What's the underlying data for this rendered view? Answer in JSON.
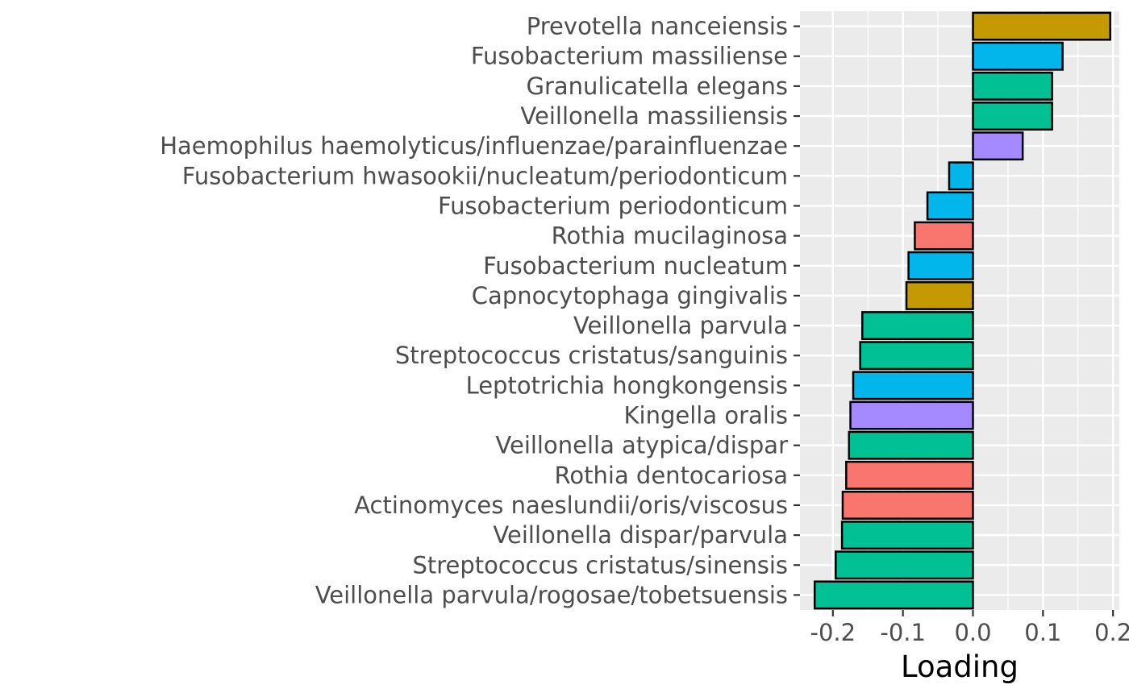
{
  "chart_data": {
    "type": "bar",
    "orientation": "horizontal",
    "title": "",
    "xlabel": "Loading",
    "ylabel": "",
    "xlim": [
      -0.247,
      0.209
    ],
    "x_ticks": [
      -0.2,
      -0.1,
      0.0,
      0.1,
      0.2
    ],
    "x_tick_labels": [
      "-0.2",
      "-0.1",
      "0.0",
      "0.1",
      "0.2"
    ],
    "grid": true,
    "legend": "none",
    "categories": [
      "Prevotella nanceiensis",
      "Fusobacterium massiliense",
      "Granulicatella elegans",
      "Veillonella massiliensis",
      "Haemophilus haemolyticus/influenzae/parainfluenzae",
      "Fusobacterium hwasookii/nucleatum/periodonticum",
      "Fusobacterium periodonticum",
      "Rothia mucilaginosa",
      "Fusobacterium nucleatum",
      "Capnocytophaga gingivalis",
      "Veillonella parvula",
      "Streptococcus cristatus/sanguinis",
      "Leptotrichia hongkongensis",
      "Kingella oralis",
      "Veillonella atypica/dispar",
      "Rothia dentocariosa",
      "Actinomyces naeslundii/oris/viscosus",
      "Veillonella dispar/parvula",
      "Streptococcus cristatus/sinensis",
      "Veillonella parvula/rogosae/tobetsuensis"
    ],
    "values": [
      0.196,
      0.128,
      0.113,
      0.113,
      0.071,
      -0.034,
      -0.065,
      -0.083,
      -0.092,
      -0.095,
      -0.158,
      -0.161,
      -0.171,
      -0.175,
      -0.177,
      -0.181,
      -0.186,
      -0.187,
      -0.196,
      -0.226
    ],
    "colors": [
      "#C49A00",
      "#00B6EB",
      "#00C094",
      "#00C094",
      "#A58AFF",
      "#00B6EB",
      "#00B6EB",
      "#F8766D",
      "#00B6EB",
      "#C49A00",
      "#00C094",
      "#00C094",
      "#00B6EB",
      "#A58AFF",
      "#00C094",
      "#F8766D",
      "#F8766D",
      "#00C094",
      "#00C094",
      "#00C094"
    ],
    "panel_background": "#EBEBEB",
    "grid_color": "#FFFFFF",
    "bar_outline": "#000000"
  }
}
